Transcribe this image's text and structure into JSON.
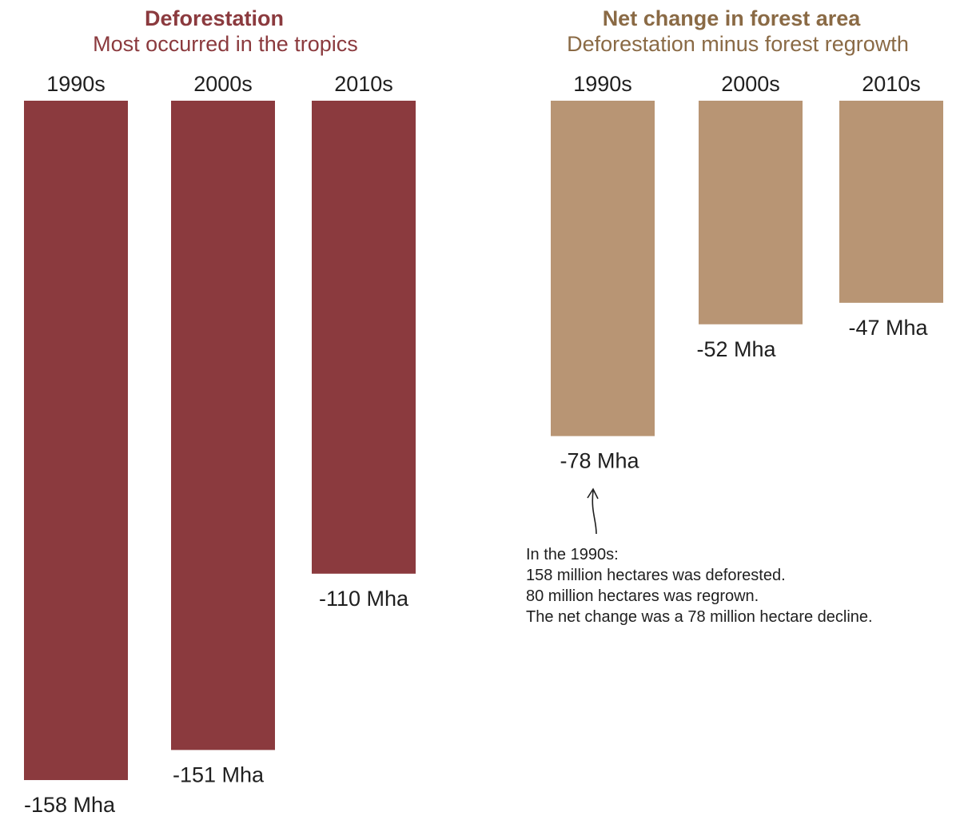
{
  "chart_data": [
    {
      "type": "bar",
      "title": "Deforestation",
      "subtitle": "Most occurred in the tropics",
      "categories": [
        "1990s",
        "2000s",
        "2010s"
      ],
      "values": [
        -158,
        -151,
        -110
      ],
      "value_labels": [
        "-158 Mha",
        "-151 Mha",
        "-110 Mha"
      ],
      "ylim": [
        -158,
        0
      ],
      "grid": false,
      "color": "#8b3a3e",
      "title_color": "#8b3a3e"
    },
    {
      "type": "bar",
      "title": "Net change in forest area",
      "subtitle": "Deforestation minus forest regrowth",
      "categories": [
        "1990s",
        "2000s",
        "2010s"
      ],
      "values": [
        -78,
        -52,
        -47
      ],
      "value_labels": [
        "-78 Mha",
        "-52 Mha",
        "-47 Mha"
      ],
      "ylim": [
        -158,
        0
      ],
      "grid": false,
      "color": "#b89574",
      "title_color": "#8a6a45",
      "annotation": {
        "target_category": "1990s",
        "lines": [
          "In the 1990s:",
          "158 million hectares was deforested.",
          "80 million hectares was regrown.",
          "The net change was a 78 million hectare decline."
        ]
      }
    }
  ]
}
